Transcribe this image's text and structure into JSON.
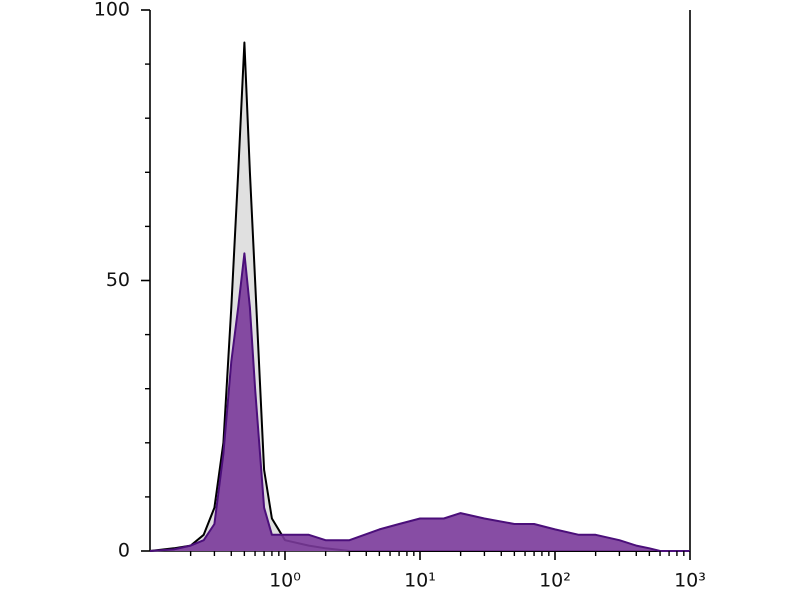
{
  "chart_data": {
    "type": "area",
    "xscale": "log",
    "x": [
      0.1,
      0.15,
      0.2,
      0.25,
      0.3,
      0.35,
      0.4,
      0.45,
      0.5,
      0.55,
      0.6,
      0.7,
      0.8,
      1,
      1.5,
      2,
      3,
      5,
      7,
      10,
      15,
      20,
      30,
      50,
      70,
      100,
      150,
      200,
      300,
      400,
      500,
      600,
      1000
    ],
    "series": [
      {
        "color": "#000000",
        "fill": "#e0e0e0",
        "values": [
          0,
          0.5,
          1,
          3,
          8,
          20,
          45,
          70,
          94,
          70,
          50,
          15,
          6,
          2,
          1,
          0.5,
          0,
          0,
          0,
          0,
          0,
          0,
          0,
          0,
          0,
          0,
          0,
          0,
          0,
          0,
          0,
          0,
          0
        ]
      },
      {
        "color": "#4b0f7a",
        "fill": "#7a3a9a",
        "values": [
          0,
          0.3,
          1,
          2,
          5,
          18,
          35,
          45,
          55,
          45,
          30,
          8,
          3,
          3,
          3,
          2,
          2,
          4,
          5,
          6,
          6,
          7,
          6,
          5,
          5,
          4,
          3,
          3,
          2,
          1,
          0.5,
          0,
          0
        ]
      }
    ],
    "xlim": [
      0.1,
      1000
    ],
    "xticks": [
      {
        "value": 1,
        "label": "10⁰"
      },
      {
        "value": 10,
        "label": "10¹"
      },
      {
        "value": 100,
        "label": "10²"
      },
      {
        "value": 1000,
        "label": "10³"
      }
    ],
    "xminorticks": [
      0.2,
      0.3,
      0.4,
      0.5,
      0.6,
      0.7,
      0.8,
      0.9,
      2,
      3,
      4,
      5,
      6,
      7,
      8,
      9,
      20,
      30,
      40,
      50,
      60,
      70,
      80,
      90,
      200,
      300,
      400,
      500,
      600,
      700,
      800,
      900
    ],
    "ylim": [
      0,
      100
    ],
    "yticks": [
      0,
      50,
      100
    ],
    "yminorticks": [
      10,
      20,
      30,
      40,
      60,
      70,
      80,
      90
    ]
  }
}
